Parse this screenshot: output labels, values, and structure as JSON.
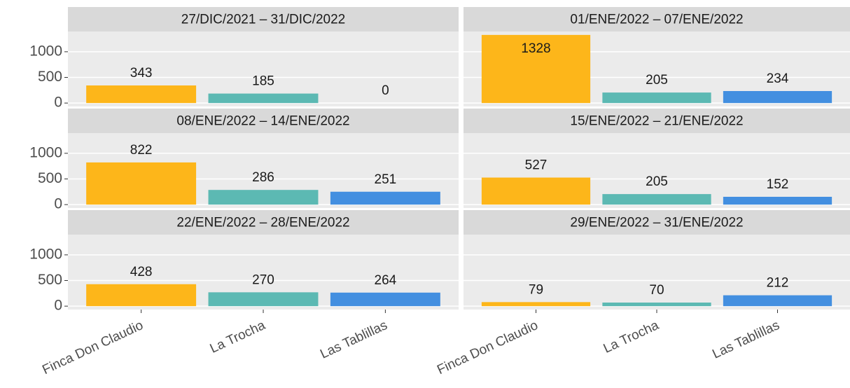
{
  "chart_data": {
    "type": "bar",
    "categories": [
      "Finca Don Claudio",
      "La Trocha",
      "Las Tablillas"
    ],
    "colors": [
      "#fdb61a",
      "#5cb9b3",
      "#438fe0"
    ],
    "ylim": [
      -66.4,
      1394.4
    ],
    "yticks": [
      0,
      500,
      1000
    ],
    "grid": true,
    "facets": [
      {
        "title": "27/DIC/2021 – 31/DIC/2022",
        "values": [
          343,
          185,
          0
        ]
      },
      {
        "title": "01/ENE/2022 – 07/ENE/2022",
        "values": [
          1328,
          205,
          234
        ]
      },
      {
        "title": "08/ENE/2022 – 14/ENE/2022",
        "values": [
          822,
          286,
          251
        ]
      },
      {
        "title": "15/ENE/2022 – 21/ENE/2022",
        "values": [
          527,
          205,
          152
        ]
      },
      {
        "title": "22/ENE/2022 – 28/ENE/2022",
        "values": [
          428,
          270,
          264
        ]
      },
      {
        "title": "29/ENE/2022 – 31/ENE/2022",
        "values": [
          79,
          70,
          212
        ]
      }
    ]
  }
}
